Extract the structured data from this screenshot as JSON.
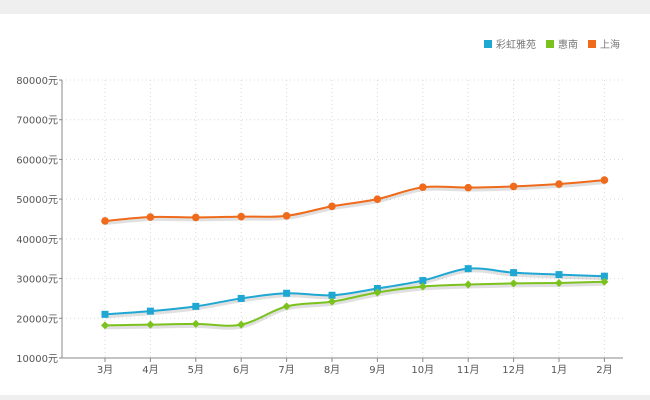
{
  "chart_data": {
    "type": "line",
    "categories": [
      "3月",
      "4月",
      "5月",
      "6月",
      "7月",
      "8月",
      "9月",
      "10月",
      "11月",
      "12月",
      "1月",
      "2月"
    ],
    "y_ticks": [
      "10000元",
      "20000元",
      "30000元",
      "40000元",
      "50000元",
      "60000元",
      "70000元",
      "80000元"
    ],
    "ylim": [
      10000,
      80000
    ],
    "grid": true,
    "legend_position": "top-right",
    "series": [
      {
        "name": "彩虹雅苑",
        "color": "#1fa7d4",
        "marker": "square",
        "values": [
          21000,
          21800,
          23000,
          25000,
          26300,
          25800,
          27500,
          29500,
          32500,
          31500,
          31000,
          30600
        ]
      },
      {
        "name": "惠南",
        "color": "#7cc21f",
        "marker": "diamond",
        "values": [
          18200,
          18400,
          18600,
          18400,
          23000,
          24200,
          26500,
          28000,
          28500,
          28800,
          28900,
          29200
        ]
      },
      {
        "name": "上海",
        "color": "#ef6a1a",
        "marker": "circle",
        "values": [
          44500,
          45500,
          45400,
          45600,
          45800,
          48200,
          50000,
          53000,
          52900,
          53200,
          53800,
          54800
        ]
      }
    ]
  }
}
